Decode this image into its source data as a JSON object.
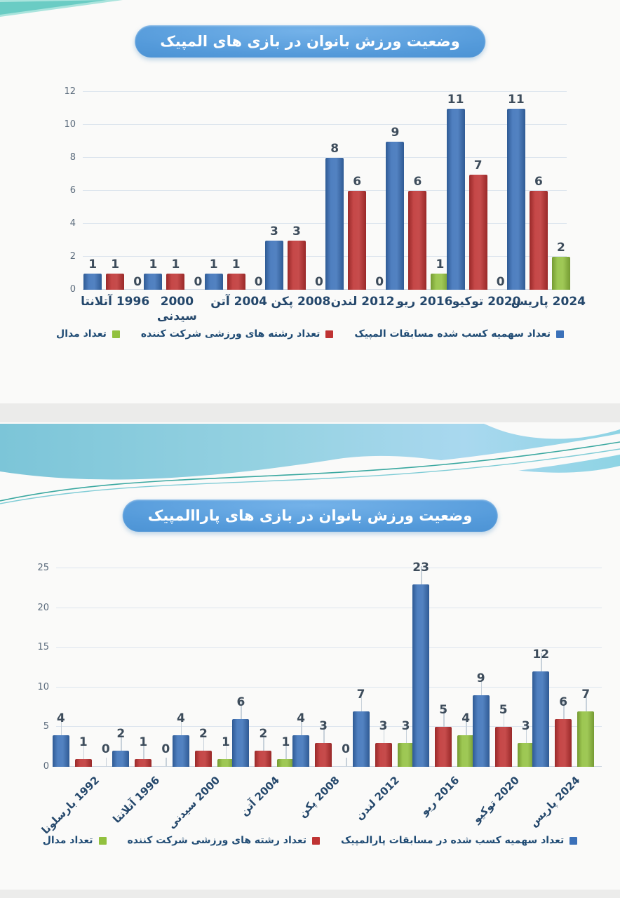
{
  "colors": {
    "title_pill": "#549ada",
    "bar_blue": "#3b71b9",
    "bar_red": "#bf3333",
    "bar_green": "#92c13f",
    "axis_text": "#5b6b7c",
    "category_text": "#24476b",
    "legend_text": "#1f4b74",
    "wave_teal": "#7cc5d8"
  },
  "chart_data": [
    {
      "type": "bar",
      "title": "وضعیت ورزش بانوان در بازی های المپیک",
      "categories": [
        "1996 آتلانتا",
        "2000 سیدنی",
        "2004 آتن",
        "2008 پکن",
        "2012 لندن",
        "2016 ریو",
        "2020 توکیو",
        "2024 پاریس"
      ],
      "series": [
        {
          "name": "تعداد سهمیه کسب شده مسابقات المپیک",
          "color": "#3b71b9",
          "values": [
            1,
            1,
            1,
            3,
            8,
            9,
            11,
            11
          ]
        },
        {
          "name": "تعداد رشته های ورزشی شرکت کننده",
          "color": "#bf3333",
          "values": [
            1,
            1,
            1,
            3,
            6,
            6,
            7,
            6
          ]
        },
        {
          "name": "تعداد مدال",
          "color": "#92c13f",
          "values": [
            0,
            0,
            0,
            0,
            0,
            1,
            0,
            2
          ]
        }
      ],
      "xlabel": "",
      "ylabel": "",
      "ylim": [
        0,
        12
      ],
      "ytick_step": 2,
      "yticks": [
        0,
        2,
        4,
        6,
        8,
        10,
        12
      ],
      "grid": true,
      "legend_position": "bottom"
    },
    {
      "type": "bar",
      "title": "وضعیت ورزش بانوان در بازی های پاراالمپیک",
      "categories": [
        "1992 بارسلونا",
        "1996 آتلانتا",
        "2000 سیدنی",
        "2004 آتن",
        "2008 پکن",
        "2012 لندن",
        "2016 ریو",
        "2020 توکیو",
        "2024 پاریس"
      ],
      "series": [
        {
          "name": "تعداد سهمیه کسب شده در مسابقات پارالمپیک",
          "color": "#3b71b9",
          "values": [
            4,
            2,
            4,
            6,
            4,
            7,
            23,
            9,
            12
          ]
        },
        {
          "name": "تعداد رشته های ورزشی شرکت کننده",
          "color": "#bf3333",
          "values": [
            1,
            1,
            2,
            2,
            3,
            3,
            5,
            5,
            6
          ]
        },
        {
          "name": "تعداد مدال",
          "color": "#92c13f",
          "values": [
            0,
            0,
            1,
            1,
            0,
            3,
            4,
            3,
            7
          ]
        }
      ],
      "xlabel": "",
      "ylabel": "",
      "ylim": [
        0,
        25
      ],
      "ytick_step": 5,
      "yticks": [
        0,
        5,
        10,
        15,
        20,
        25
      ],
      "grid": true,
      "legend_position": "bottom"
    }
  ]
}
